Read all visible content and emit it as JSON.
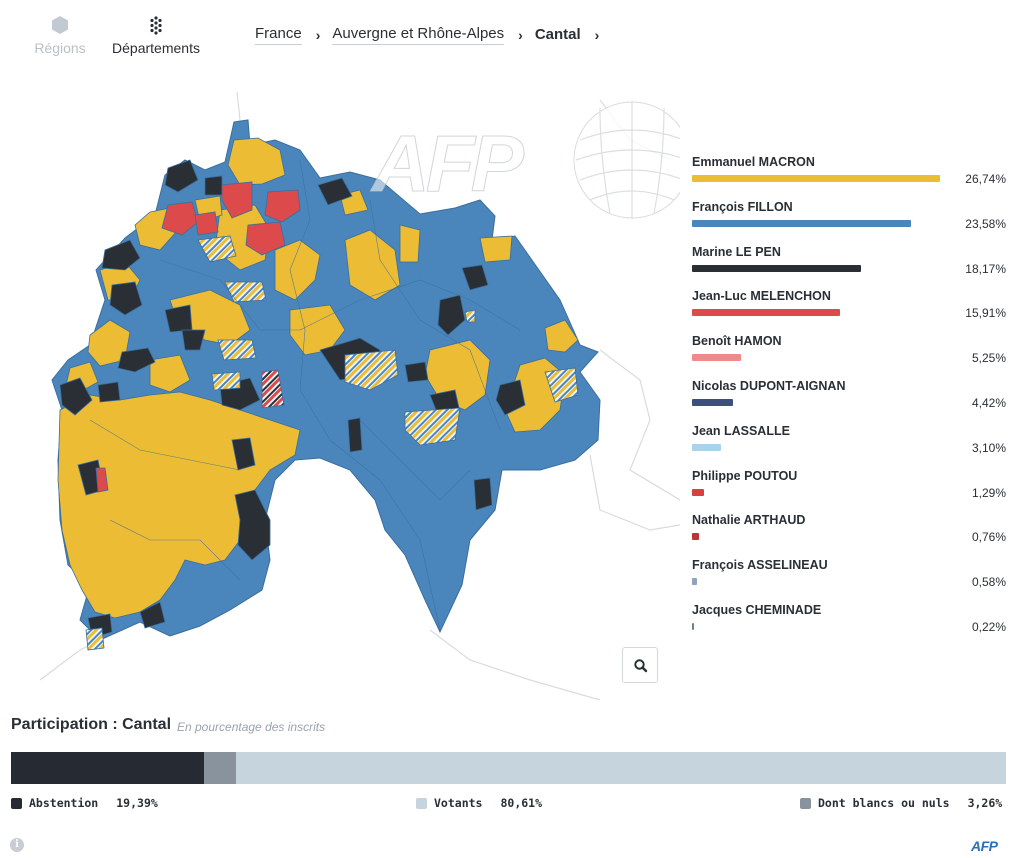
{
  "nav": {
    "regions_label": "Régions",
    "departements_label": "Départements"
  },
  "breadcrumb": {
    "items": [
      "France",
      "Auvergne et Rhône-Alpes",
      "Cantal"
    ]
  },
  "map": {
    "icons": [
      "hexagon-icon",
      "hexagon-cluster-icon",
      "search-icon"
    ],
    "fill_colors": {
      "macron": "#ecbc34",
      "fillon": "#4a86bb",
      "le_pen": "#2a2f36",
      "melenchon": "#dc4a4b",
      "tie": "#f2f4f6"
    }
  },
  "candidates": [
    {
      "name": "Emmanuel MACRON",
      "pct": "26,74%",
      "value": 26.74,
      "color": "#ecbc34"
    },
    {
      "name": "François FILLON",
      "pct": "23,58%",
      "value": 23.58,
      "color": "#4a86bb"
    },
    {
      "name": "Marine LE PEN",
      "pct": "18,17%",
      "value": 18.17,
      "color": "#2a2f36"
    },
    {
      "name": "Jean-Luc MELENCHON",
      "pct": "15,91%",
      "value": 15.91,
      "color": "#dc4a4b"
    },
    {
      "name": "Benoît HAMON",
      "pct": "5,25%",
      "value": 5.25,
      "color": "#f08a8a"
    },
    {
      "name": "Nicolas DUPONT-AIGNAN",
      "pct": "4,42%",
      "value": 4.42,
      "color": "#3c5178"
    },
    {
      "name": "Jean LASSALLE",
      "pct": "3,10%",
      "value": 3.1,
      "color": "#a9d3ea"
    },
    {
      "name": "Philippe POUTOU",
      "pct": "1,29%",
      "value": 1.29,
      "color": "#d94141"
    },
    {
      "name": "Nathalie ARTHAUD",
      "pct": "0,76%",
      "value": 0.76,
      "color": "#c0313a"
    },
    {
      "name": "François ASSELINEAU",
      "pct": "0,58%",
      "value": 0.58,
      "color": "#8fa3ba"
    },
    {
      "name": "Jacques CHEMINADE",
      "pct": "0,22%",
      "value": 0.22,
      "color": "#6f7f92"
    }
  ],
  "participation": {
    "title": "Participation : Cantal",
    "subtitle": "En pourcentage des inscrits",
    "abstention": {
      "label": "Abstention",
      "pct": "19,39%",
      "value": 19.39,
      "color": "#262b33"
    },
    "blancs": {
      "label": "Dont blancs ou nuls",
      "pct": "3,26%",
      "value": 3.26,
      "color": "#89939d"
    },
    "votants": {
      "label": "Votants",
      "pct": "80,61%",
      "value": 80.61,
      "color": "#c6d4de"
    }
  },
  "footer": {
    "info_glyph": "i",
    "logo": "AFP",
    "watermark": "AFP"
  }
}
